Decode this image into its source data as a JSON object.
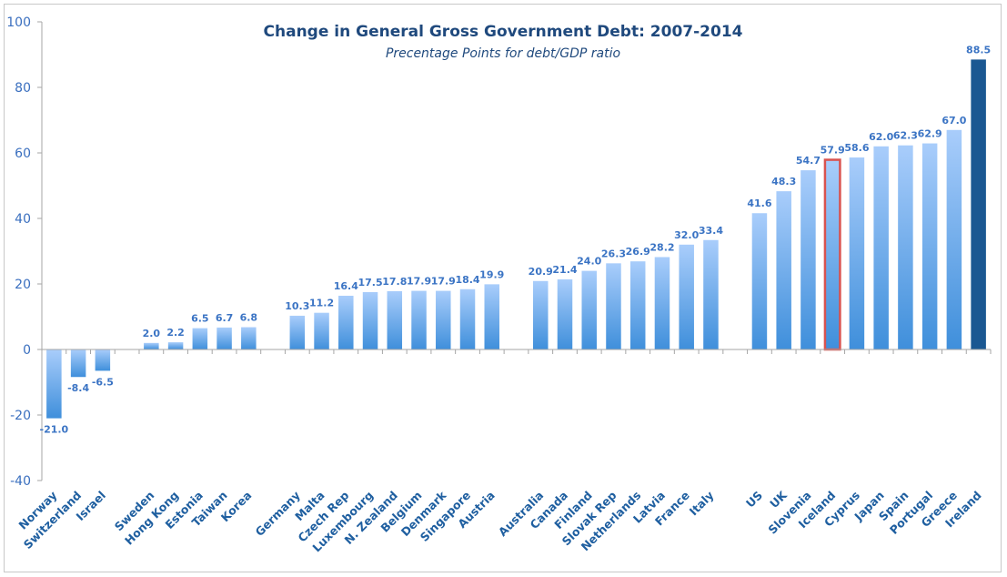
{
  "chart_data": {
    "type": "bar",
    "title": "Change in General Gross Government Debt: 2007-2014",
    "subtitle": "Precentage Points for debt/GDP ratio",
    "xlabel": "",
    "ylabel": "",
    "ylim": [
      -40,
      100
    ],
    "yticks": [
      -40,
      -20,
      0,
      20,
      40,
      60,
      80,
      100
    ],
    "grid": false,
    "legend": "none",
    "categories": [
      "Norway",
      "Switzerland",
      "Israel",
      "",
      "Sweden",
      "Hong Kong",
      "Estonia",
      "Taiwan",
      "Korea",
      "",
      "Germany",
      "Malta",
      "Czech Rep",
      "Luxembourg",
      "N. Zealand",
      "Belgium",
      "Denmark",
      "Singapore",
      "Austria",
      "",
      "Australia",
      "Canada",
      "Finland",
      "Slovak Rep",
      "Netherlands",
      "Latvia",
      "France",
      "Italy",
      "",
      "US",
      "UK",
      "Slovenia",
      "Iceland",
      "Cyprus",
      "Japan",
      "Spain",
      "Portugal",
      "Greece",
      "Ireland"
    ],
    "values": [
      -21.0,
      -8.4,
      -6.5,
      null,
      2.0,
      2.2,
      6.5,
      6.7,
      6.8,
      null,
      10.3,
      11.2,
      16.4,
      17.5,
      17.8,
      17.9,
      17.9,
      18.4,
      19.9,
      null,
      20.9,
      21.4,
      24.0,
      26.3,
      26.9,
      28.2,
      32.0,
      33.4,
      null,
      41.6,
      48.3,
      54.7,
      57.9,
      58.6,
      62.0,
      62.3,
      62.9,
      67.0,
      88.5
    ],
    "labels": [
      "-21.0",
      "-8.4",
      "-6.5",
      "",
      "2.0",
      "2.2",
      "6.5",
      "6.7",
      "6.8",
      "",
      "10.3",
      "11.2",
      "16.4",
      "17.5",
      "17.8",
      "17.9",
      "17.9",
      "18.4",
      "19.9",
      "",
      "20.9",
      "21.4",
      "24.0",
      "26.3",
      "26.9",
      "28.2",
      "32.0",
      "33.4",
      "",
      "41.6",
      "48.3",
      "54.7",
      "57.9",
      "58.6",
      "62.0",
      "62.3",
      "62.9",
      "67.0",
      "88.5"
    ],
    "highlight": {
      "Iceland": "outlined",
      "Ireland": "dark"
    },
    "colors": {
      "bar_top": "#a9cdfb",
      "bar_bottom": "#3f8fdb",
      "highlight_dark": "#1b5892",
      "highlight_outline": "#d9534f",
      "axis": "#a6a6a6"
    }
  }
}
